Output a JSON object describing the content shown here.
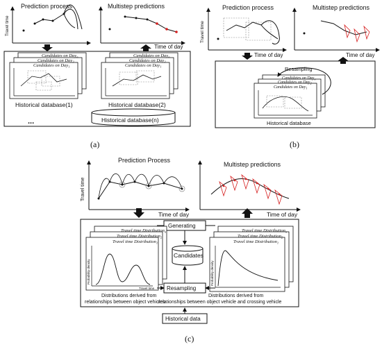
{
  "panel_a": {
    "title_left": "Prediction process",
    "title_right": "Multistep predictions",
    "y_axis": "Travel time",
    "x_axis": "Time of day",
    "cand_n": "Candidates on Day",
    "cand_2": "Candidates on Day",
    "cand_1": "Candidates on Day",
    "sub_n": "n",
    "sub_2": "2",
    "sub_1": "1",
    "db1": "Historical database(1)",
    "db2": "Historical database(2)",
    "dbn": "Historical database(n)",
    "ellipsis": "...",
    "caption": "(a)"
  },
  "panel_b": {
    "title_left": "Prediction process",
    "title_right": "Multistep predictions",
    "y_axis": "Travel time",
    "x_axis": "Time of day",
    "resampling": "Resampling",
    "cand_n": "Candidates on Day",
    "cand_2": "Candidates on Day",
    "cand_1": "Candidates on Day",
    "sub_n": "n",
    "sub_2": "2",
    "sub_1": "1",
    "db": "Historical database",
    "caption": "(b)"
  },
  "panel_c": {
    "title_left": "Prediction Process",
    "title_right": "Multistep predictions",
    "y_axis": "Travel time",
    "x_axis": "Time of day",
    "generating": "Generating",
    "candidates": "Candidates",
    "resampling": "Resampling",
    "ttd": "Travel time Distribution",
    "sub_n": "n",
    "sub_2": "2",
    "sub_1": "1",
    "prob_density": "Probability density",
    "travel_time": "Travel time",
    "dist_left_1": "Distributions derived from",
    "dist_left_2": "relationships between object vehicles",
    "dist_right_1": "Distributions derived from",
    "dist_right_2": "relationships between object vehicle and crossing vehicle",
    "historical": "Historical data",
    "caption": "(c)"
  },
  "colors": {
    "line": "#111111",
    "pred_red": "#d62020",
    "box_dash": "#888888"
  }
}
